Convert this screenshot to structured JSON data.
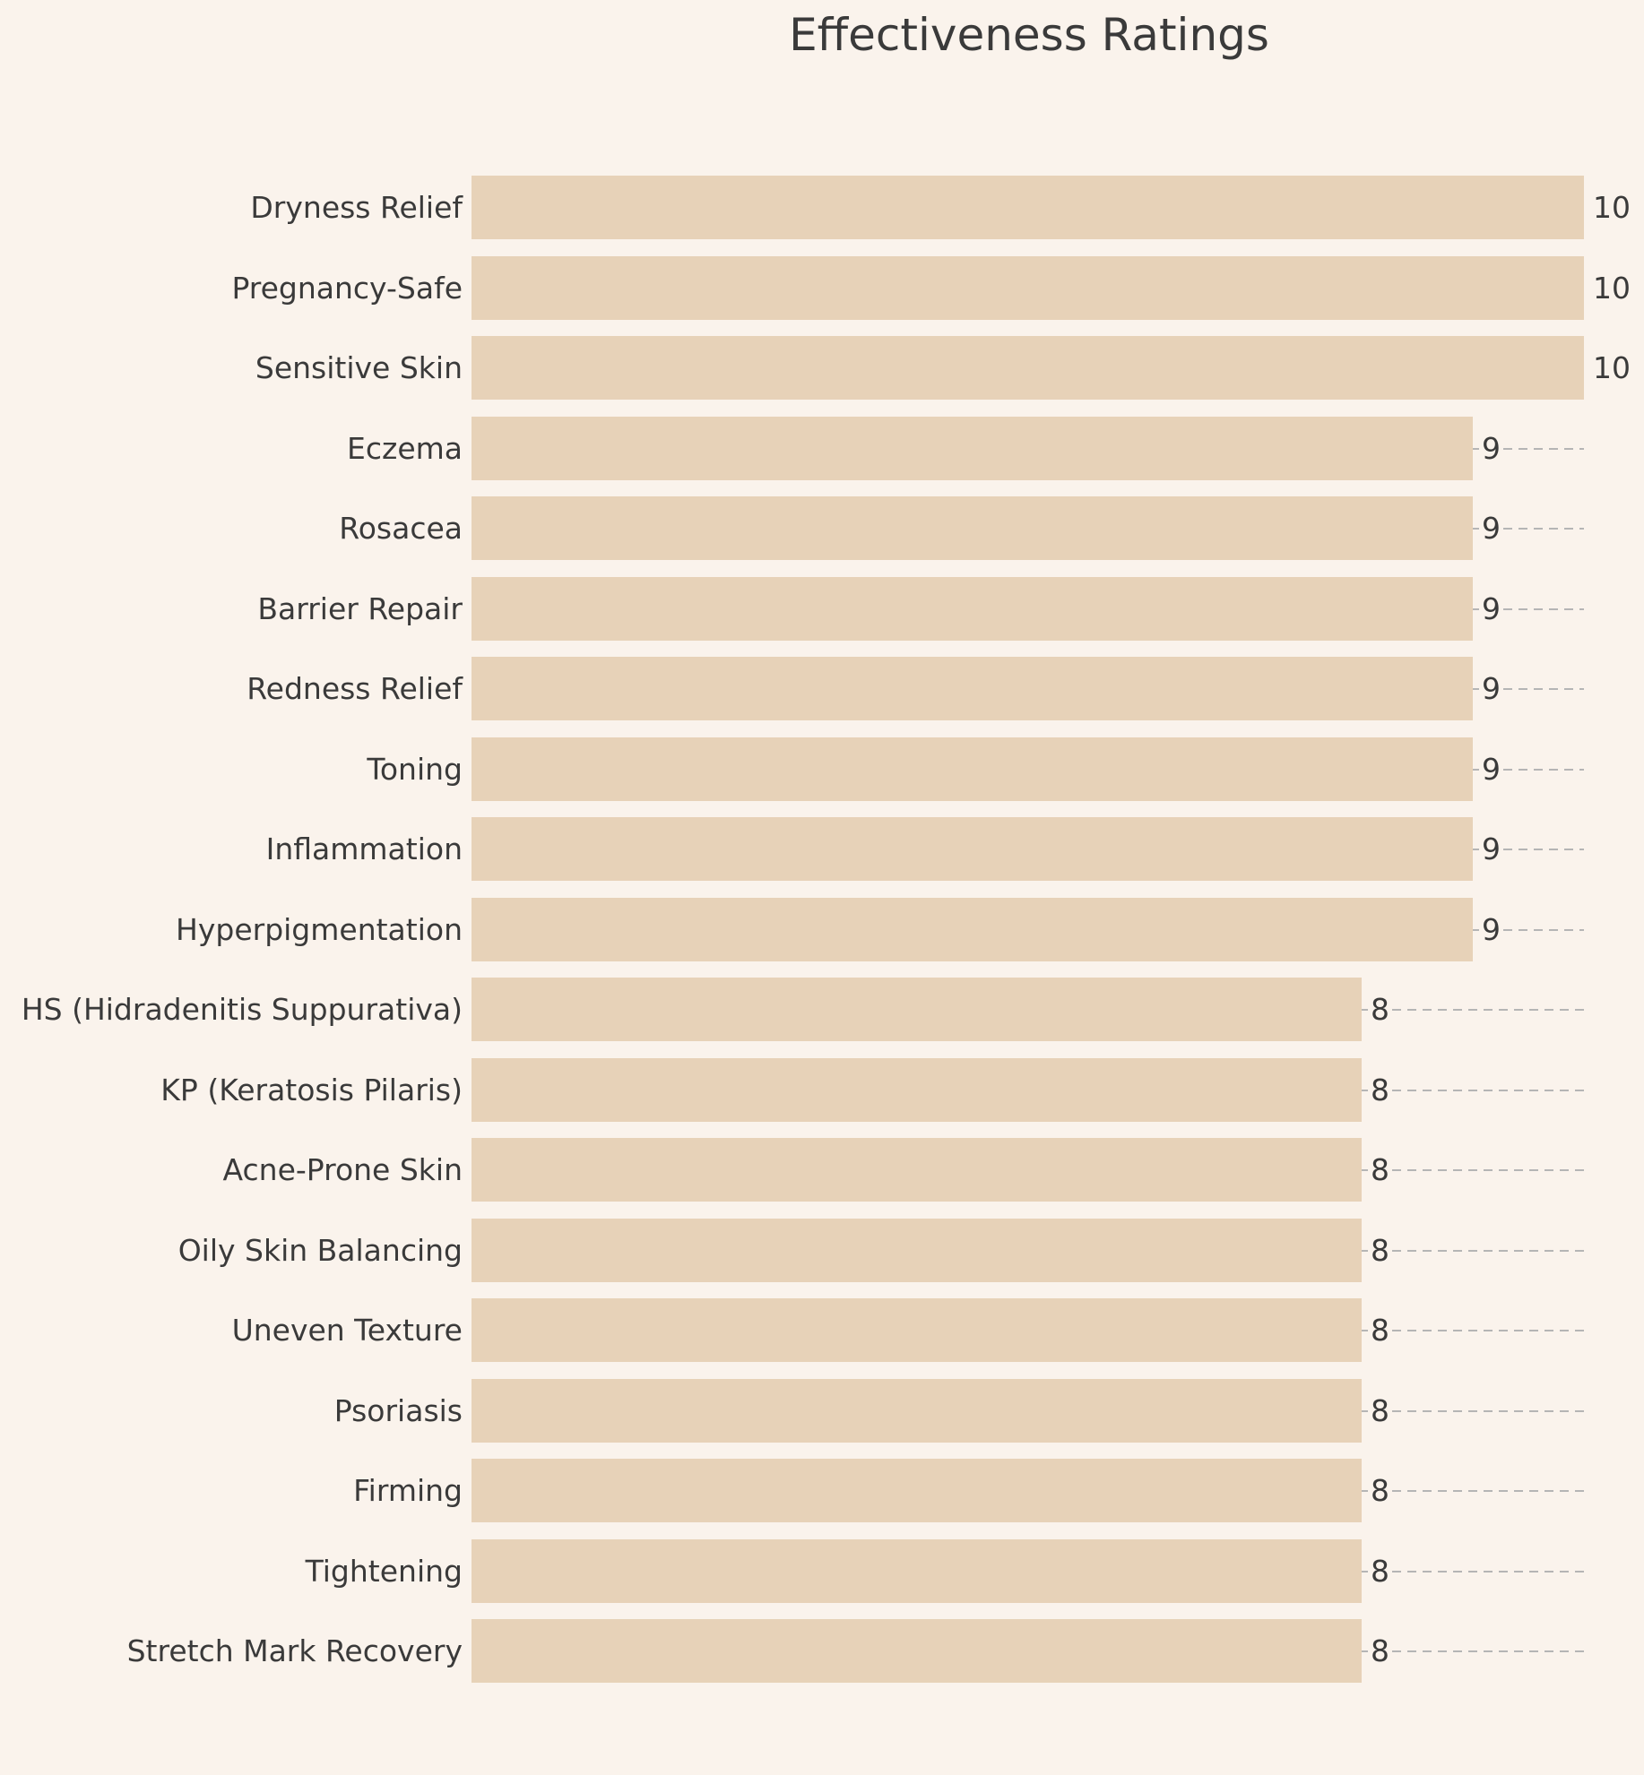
{
  "chart_data": {
    "type": "bar",
    "orientation": "horizontal",
    "title": "Effectiveness Ratings",
    "categories": [
      "Dryness Relief",
      "Pregnancy-Safe",
      "Sensitive Skin",
      "Eczema",
      "Rosacea",
      "Barrier Repair",
      "Redness Relief",
      "Toning",
      "Inflammation",
      "Hyperpigmentation",
      "HS (Hidradenitis Suppurativa)",
      "KP (Keratosis Pilaris)",
      "Acne-Prone Skin",
      "Oily Skin Balancing",
      "Uneven Texture",
      "Psoriasis",
      "Firming",
      "Tightening",
      "Stretch Mark Recovery"
    ],
    "values": [
      10,
      10,
      10,
      9,
      9,
      9,
      9,
      9,
      9,
      9,
      8,
      8,
      8,
      8,
      8,
      8,
      8,
      8,
      8
    ],
    "value_labels": [
      "10",
      "10",
      "10",
      "9",
      "9",
      "9",
      "9",
      "9",
      "9",
      "9",
      "8",
      "8",
      "8",
      "8",
      "8",
      "8",
      "8",
      "8",
      "8"
    ],
    "xlim": [
      0,
      10
    ],
    "grid": "dashed-to-max",
    "legend": "none",
    "colors": {
      "background": "#faf3ec",
      "bar": "#e7d2b8",
      "text": "#3a3a3a",
      "gridline": "#b5b5b5"
    }
  }
}
